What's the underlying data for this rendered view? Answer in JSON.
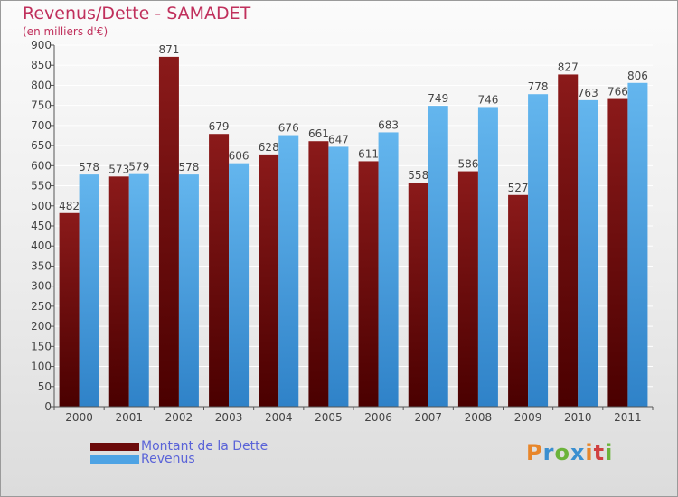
{
  "title": "Revenus/Dette - SAMADET",
  "subtitle": "(en milliers d'€)",
  "colors": {
    "dette": "#6b0a0a",
    "dette_light": "#8b1a1a",
    "revenus": "#3e95da",
    "revenus_light": "#64b6ee",
    "title": "#c0305c",
    "legend_text": "#5a63d8"
  },
  "legend": [
    {
      "label": "Montant de la Dette",
      "color": "#6b0a0a"
    },
    {
      "label": "Revenus",
      "color": "#4ea3e4"
    }
  ],
  "logo": {
    "text": "Proxiti",
    "colors": [
      "#e8862a",
      "#3a8fd0",
      "#6bb33a",
      "#3a8fd0",
      "#e8862a",
      "#d04040",
      "#6bb33a"
    ]
  },
  "chart_data": {
    "type": "bar",
    "categories": [
      "2000",
      "2001",
      "2002",
      "2003",
      "2004",
      "2005",
      "2006",
      "2007",
      "2008",
      "2009",
      "2010",
      "2011"
    ],
    "series": [
      {
        "name": "Montant de la Dette",
        "values": [
          482,
          573,
          871,
          679,
          628,
          661,
          611,
          558,
          586,
          527,
          827,
          766
        ]
      },
      {
        "name": "Revenus",
        "values": [
          578,
          579,
          578,
          606,
          676,
          647,
          683,
          749,
          746,
          778,
          763,
          806
        ]
      }
    ],
    "yticks": [
      0,
      50,
      100,
      150,
      200,
      250,
      300,
      350,
      400,
      450,
      500,
      550,
      600,
      650,
      700,
      750,
      800,
      850,
      900
    ],
    "ylim": [
      0,
      900
    ],
    "grid": true,
    "legend_position": "bottom-left"
  }
}
